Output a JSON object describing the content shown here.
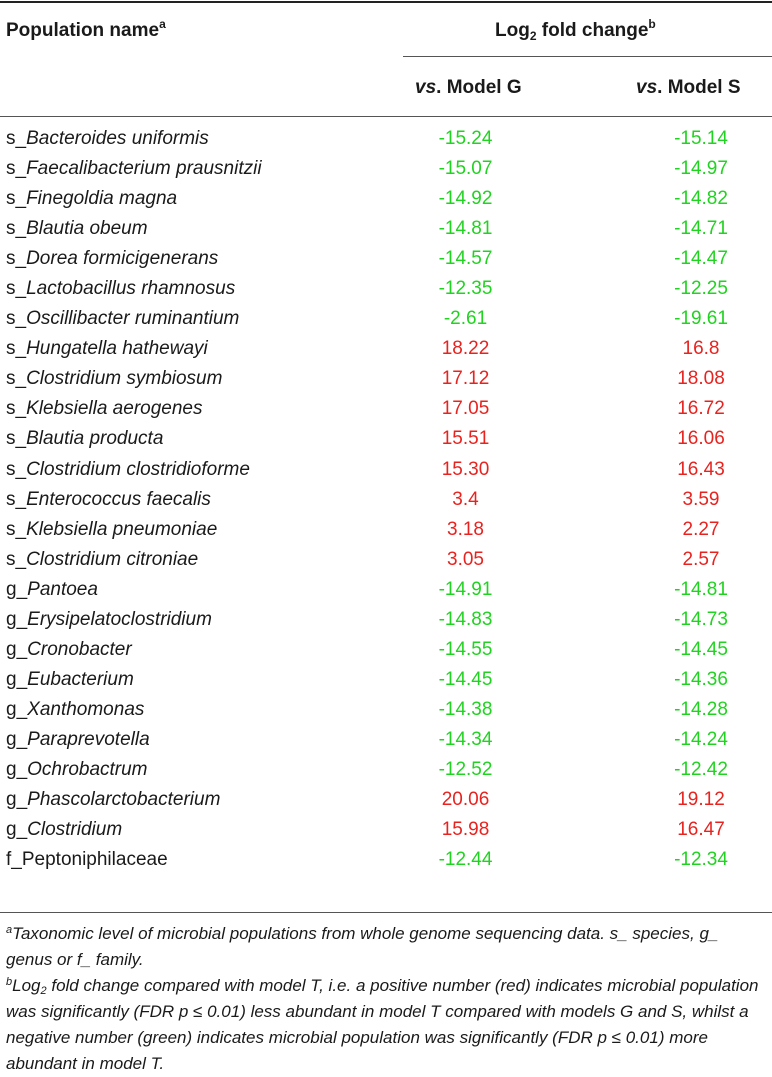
{
  "table": {
    "header": {
      "col_name": "Population name",
      "col_name_sup": "a",
      "group_label_pre": "Log",
      "group_label_sub": "2",
      "group_label_post": " fold change",
      "group_label_sup": "b",
      "col1_italic": "vs",
      "col1_rest": ". Model G",
      "col2_italic": "vs",
      "col2_rest": ". Model S"
    },
    "rows": [
      {
        "prefix": "s_",
        "name": "Bacteroides uniformis",
        "v1": "-15.24",
        "v2": "-15.14",
        "color": "green"
      },
      {
        "prefix": "s_",
        "name": "Faecalibacterium prausnitzii",
        "v1": "-15.07",
        "v2": "-14.97",
        "color": "green"
      },
      {
        "prefix": "s_",
        "name": "Finegoldia magna",
        "v1": "-14.92",
        "v2": "-14.82",
        "color": "green"
      },
      {
        "prefix": "s_",
        "name": "Blautia obeum",
        "v1": "-14.81",
        "v2": "-14.71",
        "color": "green"
      },
      {
        "prefix": "s_",
        "name": "Dorea formicigenerans",
        "v1": "-14.57",
        "v2": "-14.47",
        "color": "green"
      },
      {
        "prefix": "s_",
        "name": "Lactobacillus rhamnosus",
        "v1": "-12.35",
        "v2": "-12.25",
        "color": "green"
      },
      {
        "prefix": "s_",
        "name": "Oscillibacter ruminantium",
        "v1": "-2.61",
        "v2": "-19.61",
        "color": "green"
      },
      {
        "prefix": "s_",
        "name": "Hungatella hathewayi",
        "v1": "18.22",
        "v2": "16.8",
        "color": "red"
      },
      {
        "prefix": "s_",
        "name": "Clostridium symbiosum",
        "v1": "17.12",
        "v2": "18.08",
        "color": "red"
      },
      {
        "prefix": "s_",
        "name": "Klebsiella aerogenes",
        "v1": "17.05",
        "v2": "16.72",
        "color": "red"
      },
      {
        "prefix": "s_",
        "name": "Blautia producta",
        "v1": "15.51",
        "v2": "16.06",
        "color": "red"
      },
      {
        "prefix": "s_",
        "name": "Clostridium clostridioforme",
        "v1": "15.30",
        "v2": "16.43",
        "color": "red"
      },
      {
        "prefix": "s_",
        "name": "Enterococcus faecalis",
        "v1": "3.4",
        "v2": "3.59",
        "color": "red"
      },
      {
        "prefix": "s_",
        "name": "Klebsiella pneumoniae",
        "v1": "3.18",
        "v2": "2.27",
        "color": "red"
      },
      {
        "prefix": "s_",
        "name": "Clostridium citroniae",
        "v1": "3.05",
        "v2": "2.57",
        "color": "red"
      },
      {
        "prefix": "g_",
        "name": "Pantoea",
        "v1": "-14.91",
        "v2": "-14.81",
        "color": "green"
      },
      {
        "prefix": "g_",
        "name": "Erysipelatoclostridium",
        "v1": "-14.83",
        "v2": "-14.73",
        "color": "green"
      },
      {
        "prefix": "g_",
        "name": "Cronobacter",
        "v1": "-14.55",
        "v2": "-14.45",
        "color": "green"
      },
      {
        "prefix": "g_",
        "name": "Eubacterium",
        "v1": "-14.45",
        "v2": "-14.36",
        "color": "green"
      },
      {
        "prefix": "g_",
        "name": "Xanthomonas",
        "v1": "-14.38",
        "v2": "-14.28",
        "color": "green"
      },
      {
        "prefix": "g_",
        "name": "Paraprevotella",
        "v1": "-14.34",
        "v2": "-14.24",
        "color": "green"
      },
      {
        "prefix": "g_",
        "name": "Ochrobactrum",
        "v1": "-12.52",
        "v2": "-12.42",
        "color": "green"
      },
      {
        "prefix": "g_",
        "name": "Phascolarctobacterium",
        "v1": "20.06",
        "v2": "19.12",
        "color": "red"
      },
      {
        "prefix": "g_",
        "name": "Clostridium",
        "v1": "15.98",
        "v2": "16.47",
        "color": "red"
      },
      {
        "prefix": "f_",
        "name": "Peptoniphilaceae",
        "v1": "-12.44",
        "v2": "-12.34",
        "color": "green",
        "italic": false
      }
    ]
  },
  "footnotes": {
    "a_mark": "a",
    "a_text": "Taxonomic level of microbial populations from whole genome sequencing data. s_ species, g_ genus or f_ family.",
    "b_mark": "b",
    "b_pre": "Log",
    "b_sub": "2",
    "b_text": " fold change compared with model T, i.e. a positive number (red) indicates microbial population was significantly (FDR p ≤ 0.01) less abundant in model T compared with models G and S, whilst a negative number (green) indicates microbial population was significantly (FDR p ≤ 0.01) more abundant in model T."
  },
  "colors": {
    "positive": "#e8231f",
    "negative": "#21d321"
  }
}
